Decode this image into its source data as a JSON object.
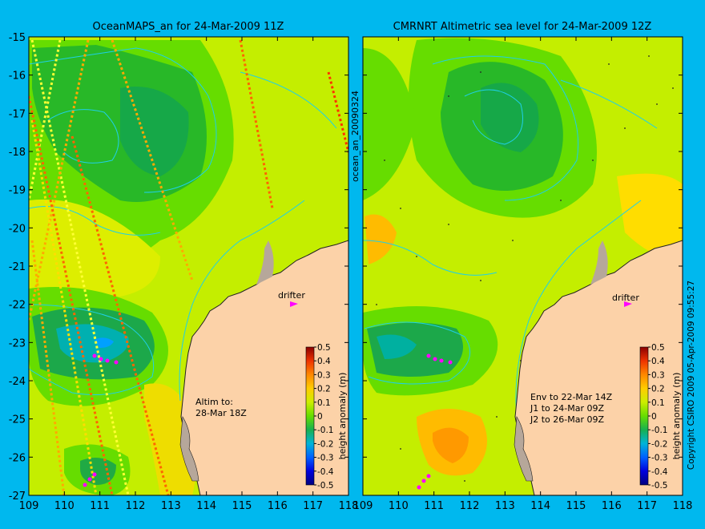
{
  "colors": {
    "background": "#00b8ee",
    "land": "#fcd2a8",
    "coast": "#222222",
    "contour": "#1fd0e8",
    "track_a": "#ffff33",
    "track_b": "#ff6600",
    "drifter": "#ff00ff"
  },
  "chart_data": [
    {
      "id": "left",
      "type": "heatmap",
      "title": "OceanMAPS_an for 24-Mar-2009 11Z",
      "xlim": [
        109,
        118
      ],
      "ylim": [
        -27,
        -15
      ],
      "xticks": [
        "109",
        "110",
        "111",
        "112",
        "113",
        "114",
        "115",
        "116",
        "117",
        "118"
      ],
      "yticks": [
        "-15",
        "-16",
        "-17",
        "-18",
        "-19",
        "-20",
        "-21",
        "-22",
        "-23",
        "-24",
        "-25",
        "-26",
        "-27"
      ],
      "annotations": [
        "Altim to:",
        "28-Mar 18Z"
      ],
      "drifter_label": "drifter",
      "colorbar": {
        "label": "height anomaly (m)",
        "ticks": [
          "0.5",
          "0.4",
          "0.3",
          "0.2",
          "0.1",
          "0",
          "-0.1",
          "-0.2",
          "-0.3",
          "-0.4",
          "-0.5"
        ]
      }
    },
    {
      "id": "right",
      "type": "heatmap",
      "title": "CMRNRT Altimetric sea level  for 24-Mar-2009 12Z",
      "xlim": [
        109,
        118
      ],
      "ylim": [
        -27,
        -15
      ],
      "xticks": [
        "109",
        "110",
        "111",
        "112",
        "113",
        "114",
        "115",
        "116",
        "117",
        "118"
      ],
      "yticks": [
        "-15",
        "-16",
        "-17",
        "-18",
        "-19",
        "-20",
        "-21",
        "-22",
        "-23",
        "-24",
        "-25",
        "-26",
        "-27"
      ],
      "annotations": [
        "Env to 22-Mar 14Z",
        "J1 to 24-Mar 09Z",
        "J2 to 26-Mar 09Z"
      ],
      "drifter_label": "drifter",
      "colorbar": {
        "label": "height anomaly (m)",
        "ticks": [
          "0.5",
          "0.4",
          "0.3",
          "0.2",
          "0.1",
          "0",
          "-0.1",
          "-0.2",
          "-0.3",
          "-0.4",
          "-0.5"
        ]
      }
    }
  ],
  "vertical_label": "ocean_an_20090324",
  "copyright": "Copyright CSIRO 2009   05-Apr-2009 09:55:27"
}
